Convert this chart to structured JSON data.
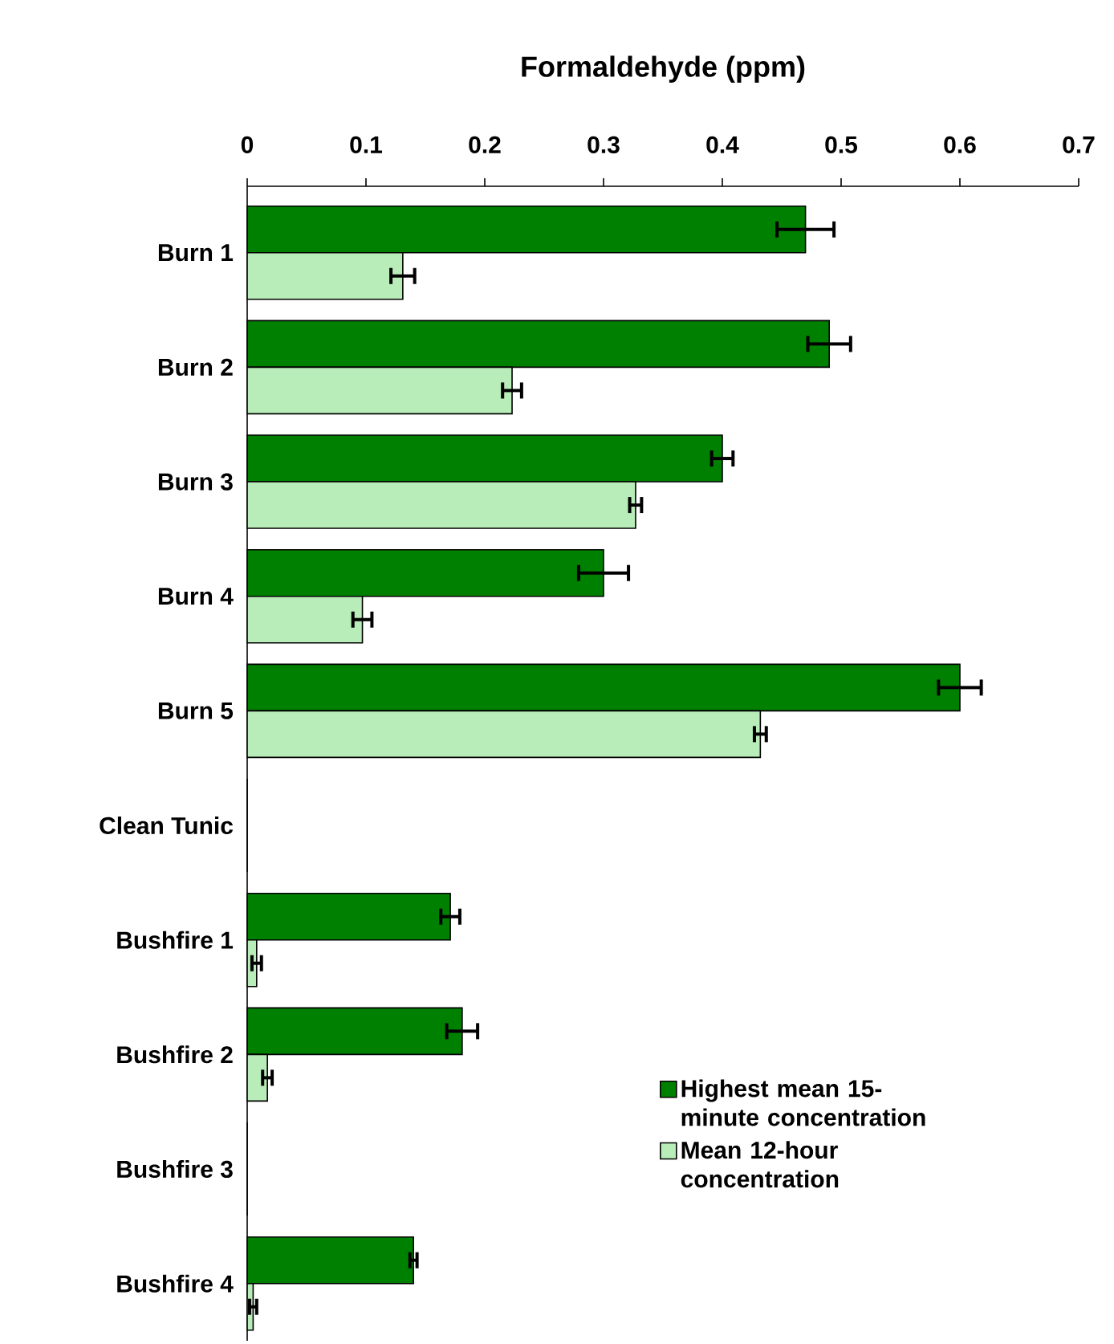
{
  "chart_data": {
    "type": "bar",
    "orientation": "horizontal",
    "title": "Formaldehyde (ppm)",
    "categories": [
      "Burn 1",
      "Burn 2",
      "Burn 3",
      "Burn 4",
      "Burn 5",
      "Clean Tunic",
      "Bushfire 1",
      "Bushfire 2",
      "Bushfire 3",
      "Bushfire 4"
    ],
    "series": [
      {
        "name": "Highest mean 15-minute concentration",
        "color": "#008000",
        "values": [
          0.47,
          0.49,
          0.4,
          0.3,
          0.6,
          0,
          0.171,
          0.181,
          0,
          0.14
        ],
        "errors": [
          0.024,
          0.018,
          0.009,
          0.021,
          0.018,
          null,
          0.008,
          0.013,
          null,
          0.003
        ]
      },
      {
        "name": "Mean 12-hour concentration",
        "color": "#b8ecb8",
        "values": [
          0.131,
          0.223,
          0.327,
          0.097,
          0.432,
          0,
          0.008,
          0.017,
          0,
          0.005
        ],
        "errors": [
          0.01,
          0.008,
          0.005,
          0.008,
          0.005,
          null,
          0.004,
          0.004,
          null,
          0.003
        ]
      }
    ],
    "xlim": [
      0,
      0.7
    ],
    "xticks": [
      0,
      0.1,
      0.2,
      0.3,
      0.4,
      0.5,
      0.6,
      0.7
    ],
    "grid": false,
    "legend": "bottom right"
  }
}
